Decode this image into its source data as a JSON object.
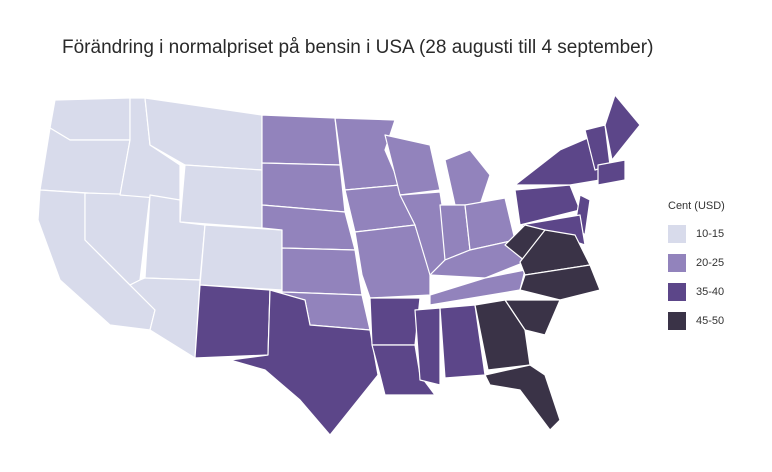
{
  "title": "Förändring i normalpriset på bensin i USA (28 augusti till 4 september)",
  "legend": {
    "title": "Cent (USD)",
    "items": [
      {
        "label": "10-15",
        "color": "#d8dbeb"
      },
      {
        "label": "20-25",
        "color": "#9283bc"
      },
      {
        "label": "35-40",
        "color": "#5c4689"
      },
      {
        "label": "45-50",
        "color": "#3a3347"
      }
    ]
  }
}
